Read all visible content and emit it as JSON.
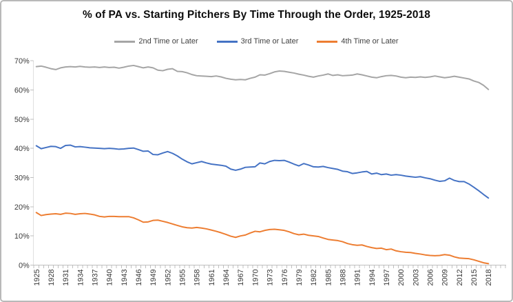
{
  "title": "% of PA vs. Starting Pitchers By Time Through the Order, 1925-2018",
  "frame": {
    "border_color": "#b9b9b9",
    "background": "#ffffff"
  },
  "axes": {
    "line_color": "#bfbfbf",
    "tick_color": "#a6a6a6",
    "label_color": "#3a3a3a"
  },
  "legend": {
    "position": "top",
    "items": [
      {
        "label": "2nd Time or Later",
        "color": "#a5a5a5"
      },
      {
        "label": "3rd Time or Later",
        "color": "#4472c4"
      },
      {
        "label": "4th Time or Later",
        "color": "#ed7d31"
      }
    ]
  },
  "chart_data": {
    "type": "line",
    "title": "% of PA vs. Starting Pitchers By Time Through the Order, 1925-2018",
    "xlabel": "",
    "ylabel": "",
    "x_start_year": 1925,
    "x_end_year": 2018,
    "x_step": 1,
    "ylim": [
      0,
      70
    ],
    "grid": false,
    "legend_position": "top",
    "x_tick_labels": [
      1925,
      1928,
      1931,
      1934,
      1937,
      1940,
      1943,
      1946,
      1949,
      1952,
      1955,
      1958,
      1961,
      1964,
      1967,
      1970,
      1973,
      1976,
      1979,
      1982,
      1985,
      1988,
      1991,
      1994,
      1997,
      2000,
      2003,
      2006,
      2009,
      2012,
      2015,
      2018
    ],
    "y_tick_labels": [
      "0%",
      "10%",
      "20%",
      "30%",
      "40%",
      "50%",
      "60%",
      "70%"
    ],
    "x_tick_label_rotation_deg": 90,
    "series": [
      {
        "name": "2nd Time or Later",
        "color": "#a5a5a5",
        "values": [
          68.0,
          68.2,
          67.8,
          67.3,
          67.0,
          67.6,
          67.9,
          68.0,
          67.9,
          68.1,
          67.9,
          67.8,
          67.9,
          67.7,
          67.9,
          67.7,
          67.8,
          67.5,
          67.8,
          68.2,
          68.4,
          68.0,
          67.6,
          67.9,
          67.6,
          66.8,
          66.6,
          67.1,
          67.3,
          66.4,
          66.3,
          65.9,
          65.3,
          64.9,
          64.8,
          64.7,
          64.6,
          64.8,
          64.5,
          64.0,
          63.7,
          63.5,
          63.6,
          63.5,
          64.0,
          64.4,
          65.2,
          65.1,
          65.6,
          66.2,
          66.5,
          66.4,
          66.1,
          65.8,
          65.4,
          65.1,
          64.7,
          64.4,
          64.8,
          65.1,
          65.5,
          65.0,
          65.2,
          64.9,
          65.0,
          65.1,
          65.5,
          65.2,
          64.8,
          64.4,
          64.2,
          64.6,
          64.9,
          65.0,
          64.8,
          64.4,
          64.2,
          64.4,
          64.3,
          64.5,
          64.3,
          64.5,
          64.8,
          64.5,
          64.2,
          64.4,
          64.7,
          64.4,
          64.1,
          63.8,
          63.1,
          62.6,
          61.6,
          60.2
        ]
      },
      {
        "name": "3rd Time or Later",
        "color": "#4472c4",
        "values": [
          40.9,
          39.9,
          40.3,
          40.7,
          40.6,
          40.0,
          41.0,
          41.1,
          40.5,
          40.6,
          40.4,
          40.2,
          40.1,
          40.0,
          39.9,
          40.0,
          39.9,
          39.7,
          39.8,
          40.0,
          40.1,
          39.6,
          39.0,
          39.1,
          37.9,
          37.8,
          38.4,
          38.9,
          38.3,
          37.4,
          36.3,
          35.4,
          34.7,
          35.1,
          35.5,
          35.0,
          34.6,
          34.4,
          34.2,
          33.9,
          32.9,
          32.5,
          32.9,
          33.5,
          33.6,
          33.7,
          35.0,
          34.7,
          35.5,
          35.9,
          35.8,
          35.9,
          35.3,
          34.6,
          34.0,
          34.8,
          34.3,
          33.7,
          33.6,
          33.8,
          33.4,
          33.1,
          32.8,
          32.2,
          32.0,
          31.4,
          31.6,
          31.9,
          32.1,
          31.2,
          31.5,
          31.0,
          31.2,
          30.8,
          31.0,
          30.8,
          30.5,
          30.3,
          30.1,
          30.3,
          29.9,
          29.6,
          29.1,
          28.7,
          28.9,
          29.8,
          29.0,
          28.6,
          28.6,
          27.8,
          26.7,
          25.5,
          24.2,
          23.0
        ]
      },
      {
        "name": "4th Time or Later",
        "color": "#ed7d31",
        "values": [
          18.0,
          17.0,
          17.3,
          17.5,
          17.6,
          17.4,
          17.8,
          17.7,
          17.4,
          17.6,
          17.7,
          17.5,
          17.2,
          16.7,
          16.5,
          16.7,
          16.7,
          16.6,
          16.6,
          16.6,
          16.2,
          15.5,
          14.7,
          14.8,
          15.3,
          15.4,
          15.0,
          14.6,
          14.1,
          13.6,
          13.1,
          12.8,
          12.7,
          12.9,
          12.7,
          12.4,
          12.0,
          11.6,
          11.1,
          10.5,
          9.9,
          9.5,
          10.0,
          10.3,
          11.0,
          11.6,
          11.4,
          11.9,
          12.2,
          12.3,
          12.1,
          11.9,
          11.4,
          10.8,
          10.4,
          10.6,
          10.2,
          10.0,
          9.8,
          9.3,
          8.8,
          8.6,
          8.4,
          8.0,
          7.4,
          7.0,
          6.8,
          6.9,
          6.4,
          6.0,
          5.7,
          5.8,
          5.3,
          5.5,
          4.9,
          4.6,
          4.4,
          4.3,
          4.0,
          3.8,
          3.5,
          3.3,
          3.2,
          3.3,
          3.6,
          3.4,
          2.8,
          2.4,
          2.3,
          2.2,
          1.8,
          1.3,
          0.8,
          0.5
        ]
      }
    ]
  }
}
